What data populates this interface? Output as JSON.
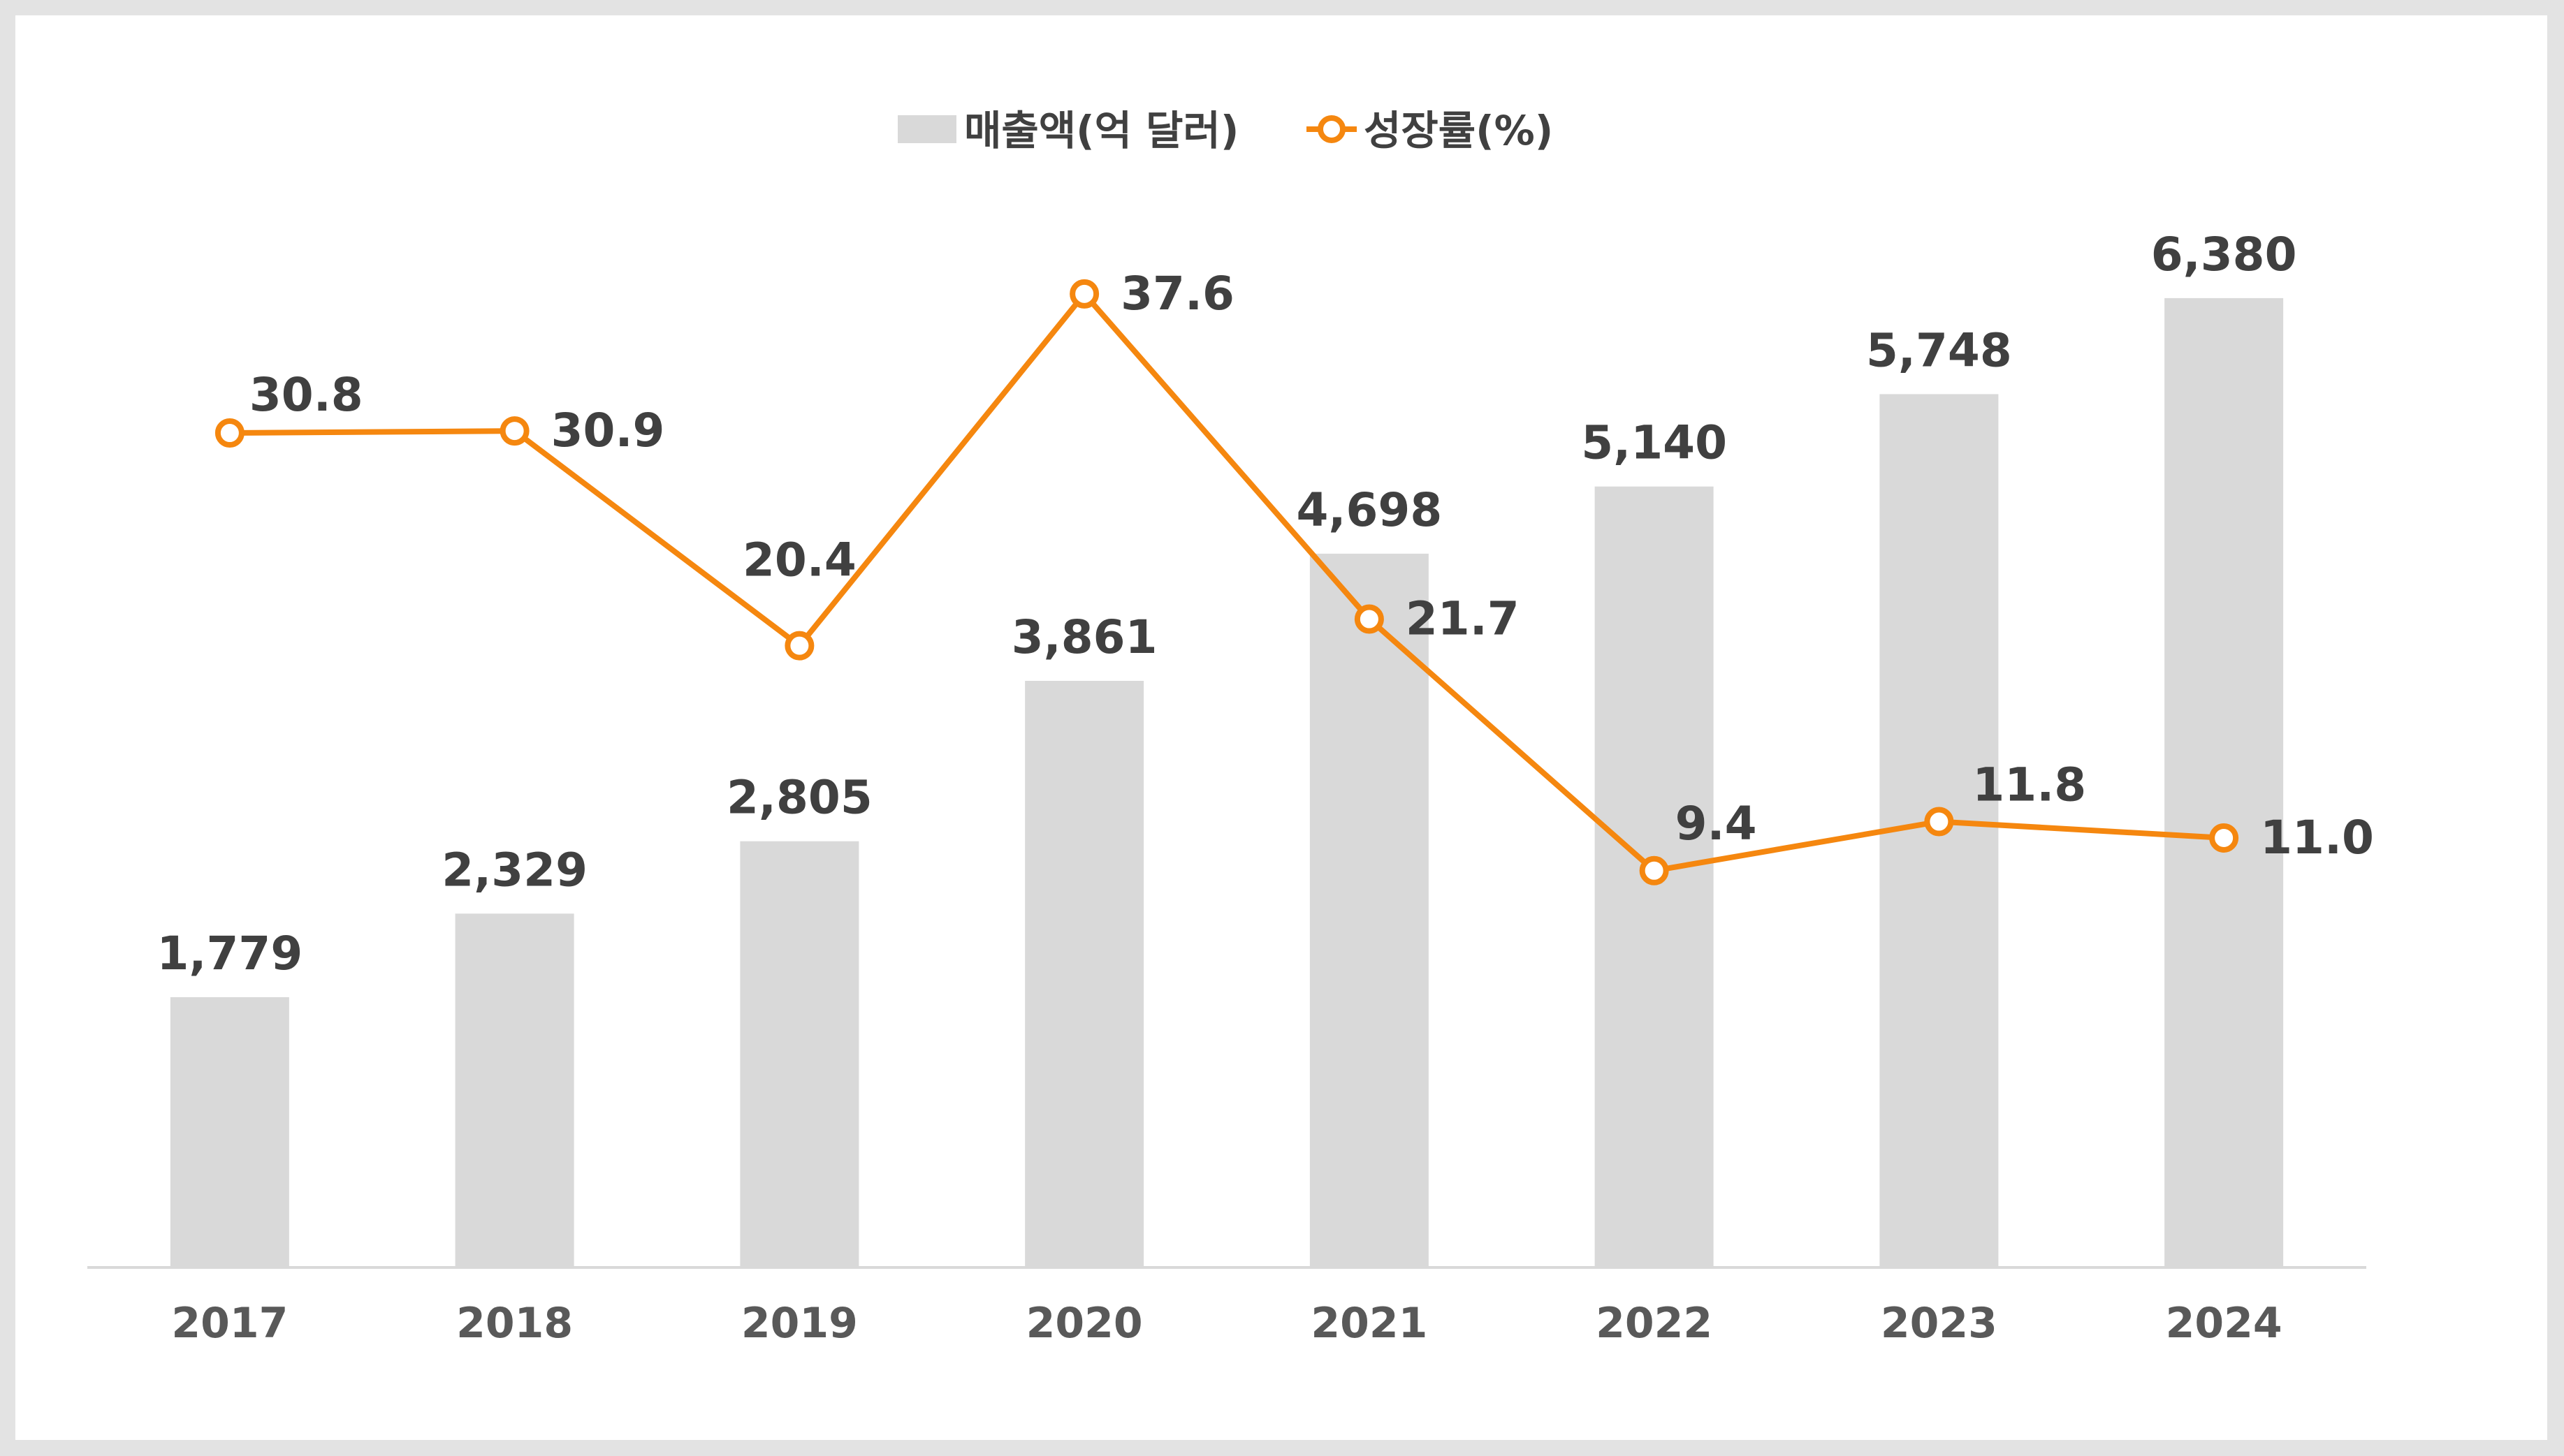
{
  "chart_data": {
    "type": "bar",
    "categories": [
      "2017",
      "2018",
      "2019",
      "2020",
      "2021",
      "2022",
      "2023",
      "2024"
    ],
    "series": [
      {
        "name": "매출액(억 달러)",
        "type": "bar",
        "axis": "left",
        "color": "#d9d9d9",
        "values": [
          1779,
          2329,
          2805,
          3861,
          4698,
          5140,
          5748,
          6380
        ],
        "labels": [
          "1,779",
          "2,329",
          "2,805",
          "3,861",
          "4,698",
          "5,140",
          "5,748",
          "6,380"
        ]
      },
      {
        "name": "성장률(%)",
        "type": "line",
        "axis": "right",
        "color": "#f5870f",
        "marker": "hollow-circle",
        "values": [
          30.8,
          30.9,
          20.4,
          37.6,
          21.7,
          9.4,
          11.8,
          11.0
        ],
        "labels": [
          "30.8",
          "30.9",
          "20.4",
          "37.6",
          "21.7",
          "9.4",
          "11.8",
          "11.0"
        ]
      }
    ],
    "ylim_left": [
      0,
      7000
    ],
    "ylim_right": [
      -10,
      42
    ],
    "grid": false,
    "legend": "top-center"
  }
}
